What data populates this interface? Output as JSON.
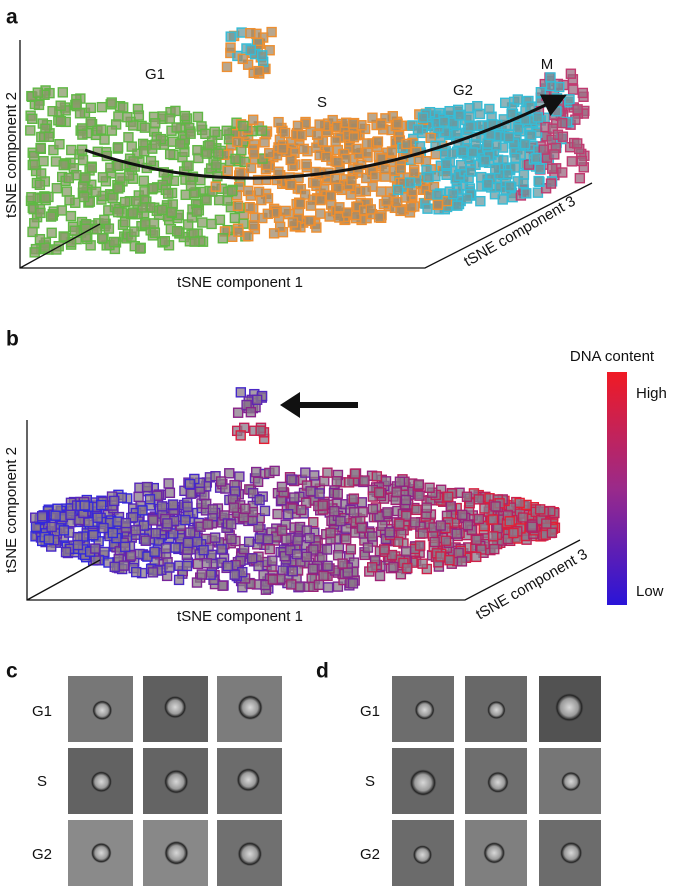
{
  "panel_a": {
    "label": "a",
    "phases": [
      "G1",
      "S",
      "G2",
      "M"
    ],
    "axis_1": "tSNE component 1",
    "axis_2": "tSNE component 2",
    "axis_3": "tSNE component 3"
  },
  "panel_b": {
    "label": "b",
    "axis_1": "tSNE component 1",
    "axis_2": "tSNE component 2",
    "axis_3": "tSNE component 3",
    "colorbar": {
      "title": "DNA content",
      "high": "High",
      "low": "Low"
    }
  },
  "panel_c": {
    "label": "c",
    "rows": [
      "G1",
      "S",
      "G2"
    ]
  },
  "panel_d": {
    "label": "d",
    "rows": [
      "G1",
      "S",
      "G2"
    ]
  }
}
